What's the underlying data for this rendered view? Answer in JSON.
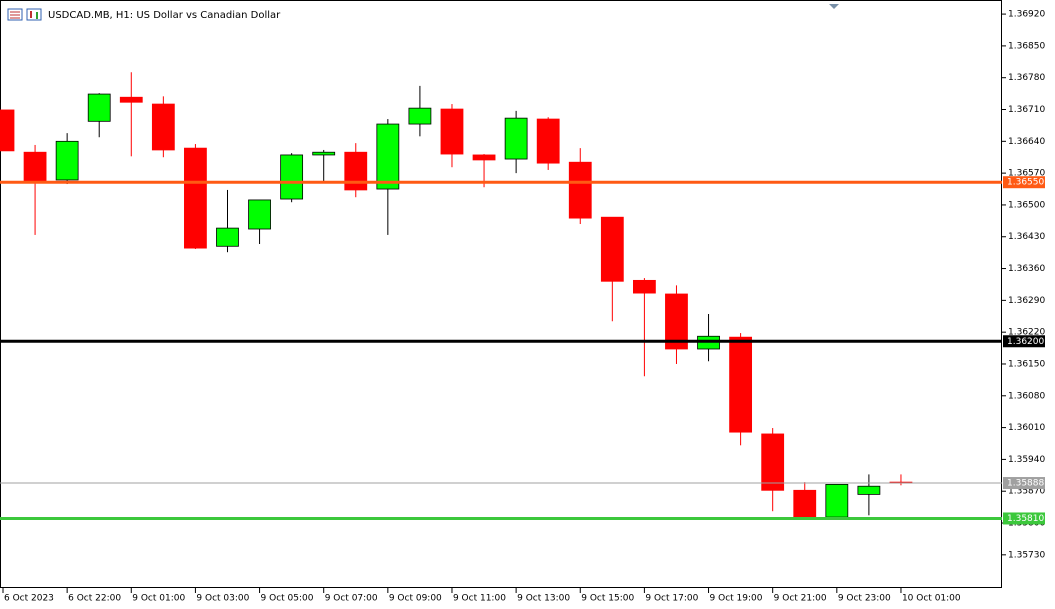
{
  "chart_data": {
    "type": "candlestick",
    "title": "USDCAD.MB, H1:  US Dollar vs Canadian Dollar",
    "categories": [
      "6 Oct 2023",
      null,
      "6 Oct 22:00",
      null,
      "9 Oct 01:00",
      null,
      "9 Oct 03:00",
      null,
      "9 Oct 05:00",
      null,
      "9 Oct 07:00",
      null,
      "9 Oct 09:00",
      null,
      "9 Oct 11:00",
      null,
      "9 Oct 13:00",
      null,
      "9 Oct 15:00",
      null,
      "9 Oct 17:00",
      null,
      "9 Oct 19:00",
      null,
      "9 Oct 21:00",
      null,
      "9 Oct 23:00",
      null,
      "10 Oct 01:00"
    ],
    "open": [
      1.36709,
      1.36616,
      1.36555,
      1.36684,
      1.36737,
      1.36722,
      1.36625,
      1.36409,
      1.36447,
      1.36513,
      1.3661,
      1.36616,
      1.36535,
      1.36678,
      1.36711,
      1.3661,
      1.36601,
      1.36689,
      1.36594,
      1.36473,
      1.36334,
      1.36304,
      1.36183,
      1.36209,
      1.35996,
      1.35872,
      1.35813,
      1.35863,
      1.3589
    ],
    "high": [
      1.36709,
      1.36632,
      1.36658,
      1.36746,
      1.36792,
      1.36739,
      1.36634,
      1.36533,
      1.36511,
      1.36614,
      1.36621,
      1.36636,
      1.36689,
      1.36762,
      1.36722,
      1.36612,
      1.36707,
      1.36693,
      1.36625,
      1.36473,
      1.36339,
      1.36323,
      1.3626,
      1.36218,
      1.36009,
      1.3589,
      1.35885,
      1.35907,
      1.35907
    ],
    "low": [
      1.36619,
      1.36434,
      1.36546,
      1.36649,
      1.36607,
      1.36605,
      1.36403,
      1.36396,
      1.36414,
      1.36506,
      1.36552,
      1.36517,
      1.36434,
      1.36651,
      1.36583,
      1.36539,
      1.3657,
      1.36577,
      1.36458,
      1.36244,
      1.36123,
      1.3615,
      1.36156,
      1.35971,
      1.35826,
      1.35808,
      1.35813,
      1.35817,
      1.35883
    ],
    "close": [
      1.36619,
      1.36552,
      1.3664,
      1.36744,
      1.36726,
      1.36621,
      1.36405,
      1.36449,
      1.36511,
      1.3661,
      1.36616,
      1.36533,
      1.36678,
      1.36713,
      1.36612,
      1.36599,
      1.36691,
      1.36592,
      1.36471,
      1.36332,
      1.36306,
      1.36183,
      1.36211,
      1.36,
      1.35872,
      1.35813,
      1.35885,
      1.35881,
      1.35888
    ],
    "up_color": "#00ff00",
    "down_color": "#ff0000",
    "ylim": [
      1.35657,
      1.36951
    ],
    "yticks": [
      {
        "value": 1.3692,
        "label": "1.36920"
      },
      {
        "value": 1.3685,
        "label": "1.36850"
      },
      {
        "value": 1.3678,
        "label": "1.36780"
      },
      {
        "value": 1.3671,
        "label": "1.36710"
      },
      {
        "value": 1.3664,
        "label": "1.36640"
      },
      {
        "value": 1.3657,
        "label": "1.36570"
      },
      {
        "value": 1.365,
        "label": "1.36500"
      },
      {
        "value": 1.3643,
        "label": "1.36430"
      },
      {
        "value": 1.3636,
        "label": "1.36360"
      },
      {
        "value": 1.3629,
        "label": "1.36290"
      },
      {
        "value": 1.3622,
        "label": "1.36220"
      },
      {
        "value": 1.3615,
        "label": "1.36150"
      },
      {
        "value": 1.3608,
        "label": "1.36080"
      },
      {
        "value": 1.3601,
        "label": "1.36010"
      },
      {
        "value": 1.3594,
        "label": "1.35940"
      },
      {
        "value": 1.3587,
        "label": "1.35870"
      },
      {
        "value": 1.358,
        "label": "1.35800"
      },
      {
        "value": 1.3573,
        "label": "1.35730"
      }
    ],
    "hlines": [
      {
        "value": 1.3655,
        "label": "1.36550",
        "color": "#ff5a14"
      },
      {
        "value": 1.362,
        "label": "1.36200",
        "color": "#000000"
      },
      {
        "value": 1.35888,
        "label": "1.35888",
        "color": "#a0a0a0"
      },
      {
        "value": 1.3581,
        "label": "1.35810",
        "color": "#3cc83c"
      }
    ]
  }
}
